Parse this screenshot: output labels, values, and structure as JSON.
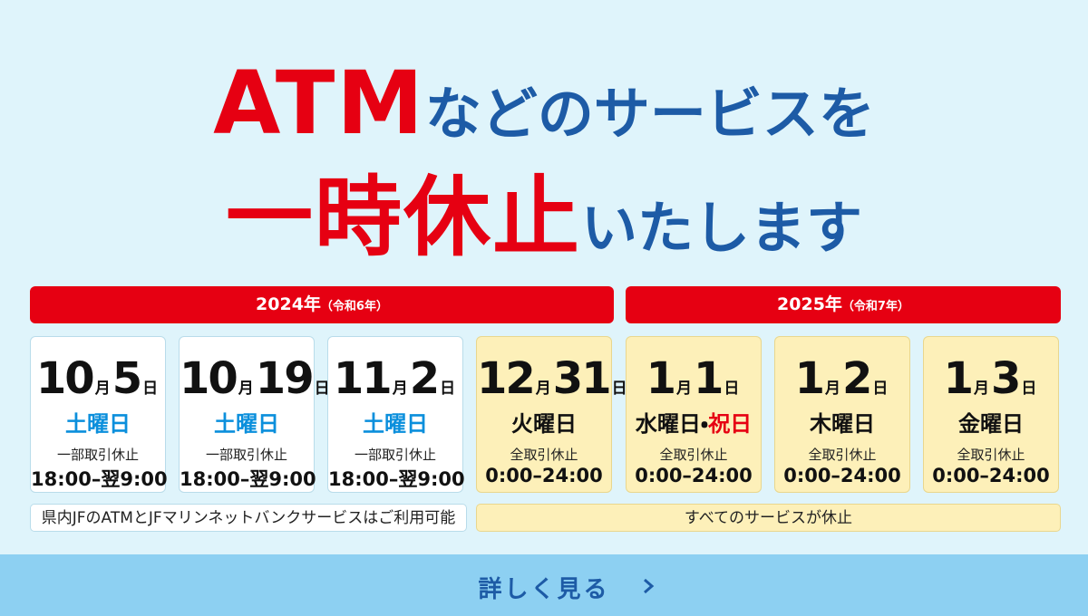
{
  "headline": {
    "line1": [
      {
        "text": "ATM",
        "color": "#e60012"
      },
      {
        "text": "などのサービスを",
        "color": "#1d5ba6"
      }
    ],
    "line2": [
      {
        "text": "一時休止",
        "color": "#e60012"
      },
      {
        "text": "いたします",
        "color": "#1d5ba6"
      }
    ]
  },
  "years": [
    {
      "year": "2024年",
      "era": "（令和6年）"
    },
    {
      "year": "2025年",
      "era": "（令和7年）"
    }
  ],
  "cards": [
    {
      "month": "10",
      "month_unit": "月",
      "day": "5",
      "day_unit": "日",
      "weekday": [
        {
          "text": "土曜日",
          "color": "#0b8fdc"
        }
      ],
      "note": "一部取引休止",
      "time": "18:00–翌9:00",
      "fill": "#ffffff",
      "border": "#b9dcea"
    },
    {
      "month": "10",
      "month_unit": "月",
      "day": "19",
      "day_unit": "日",
      "weekday": [
        {
          "text": "土曜日",
          "color": "#0b8fdc"
        }
      ],
      "note": "一部取引休止",
      "time": "18:00–翌9:00",
      "fill": "#ffffff",
      "border": "#b9dcea"
    },
    {
      "month": "11",
      "month_unit": "月",
      "day": "2",
      "day_unit": "日",
      "weekday": [
        {
          "text": "土曜日",
          "color": "#0b8fdc"
        }
      ],
      "note": "一部取引休止",
      "time": "18:00–翌9:00",
      "fill": "#ffffff",
      "border": "#b9dcea"
    },
    {
      "month": "12",
      "month_unit": "月",
      "day": "31",
      "day_unit": "日",
      "weekday": [
        {
          "text": "火曜日",
          "color": "#111111"
        }
      ],
      "note": "全取引休止",
      "time": "0:00–24:00",
      "fill": "#fdf0b9",
      "border": "#e9d78e"
    },
    {
      "month": "1",
      "month_unit": "月",
      "day": "1",
      "day_unit": "日",
      "weekday": [
        {
          "text": "水曜日・",
          "color": "#111111"
        },
        {
          "text": "祝日",
          "color": "#e60012"
        }
      ],
      "note": "全取引休止",
      "time": "0:00–24:00",
      "fill": "#fdf0b9",
      "border": "#e9d78e"
    },
    {
      "month": "1",
      "month_unit": "月",
      "day": "2",
      "day_unit": "日",
      "weekday": [
        {
          "text": "木曜日",
          "color": "#111111"
        }
      ],
      "note": "全取引休止",
      "time": "0:00–24:00",
      "fill": "#fdf0b9",
      "border": "#e9d78e"
    },
    {
      "month": "1",
      "month_unit": "月",
      "day": "3",
      "day_unit": "日",
      "weekday": [
        {
          "text": "金曜日",
          "color": "#111111"
        }
      ],
      "note": "全取引休止",
      "time": "0:00–24:00",
      "fill": "#fdf0b9",
      "border": "#e9d78e"
    }
  ],
  "notes": [
    "県内JFのATMとJFマリンネットバンクサービスはご利用可能",
    "すべてのサービスが休止"
  ],
  "button": "詳しく見る"
}
